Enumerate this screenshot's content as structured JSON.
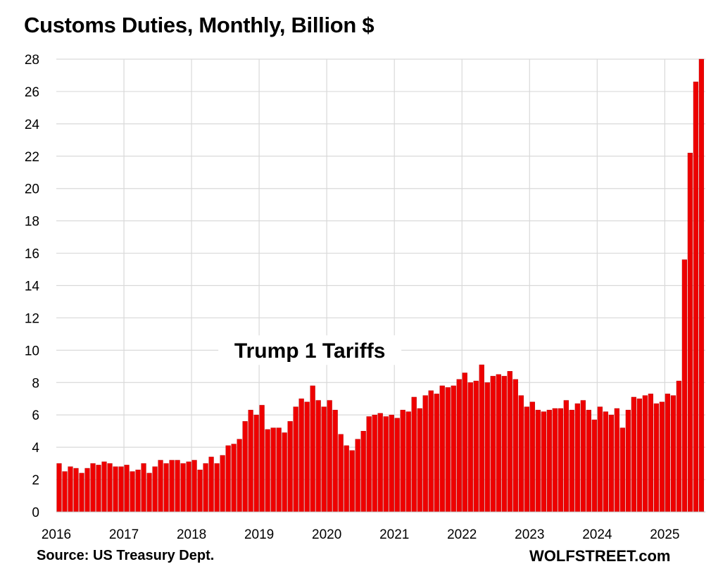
{
  "chart_data": {
    "type": "bar",
    "title": "Customs Duties, Monthly, Billion $",
    "xlabel": "",
    "ylabel": "",
    "ylim": [
      0,
      28
    ],
    "y_ticks": [
      "0",
      "2",
      "4",
      "6",
      "8",
      "10",
      "12",
      "14",
      "16",
      "18",
      "20",
      "22",
      "24",
      "26",
      "28"
    ],
    "x_ticks": [
      "2016",
      "2017",
      "2018",
      "2019",
      "2020",
      "2021",
      "2022",
      "2023",
      "2024",
      "2025"
    ],
    "start": "2016-01",
    "bar_color": "#ee0000",
    "values": [
      3.0,
      2.5,
      2.8,
      2.7,
      2.4,
      2.7,
      3.0,
      2.9,
      3.1,
      3.0,
      2.8,
      2.8,
      2.9,
      2.5,
      2.6,
      3.0,
      2.4,
      2.8,
      3.2,
      3.0,
      3.2,
      3.2,
      3.0,
      3.1,
      3.2,
      2.6,
      3.0,
      3.4,
      3.0,
      3.5,
      4.1,
      4.2,
      4.5,
      5.6,
      6.3,
      6.0,
      6.6,
      5.1,
      5.2,
      5.2,
      4.9,
      5.6,
      6.5,
      7.0,
      6.8,
      7.8,
      6.9,
      6.5,
      6.9,
      6.3,
      4.8,
      4.1,
      3.8,
      4.5,
      5.0,
      5.9,
      6.0,
      6.1,
      5.9,
      6.0,
      5.8,
      6.3,
      6.2,
      7.1,
      6.4,
      7.2,
      7.5,
      7.3,
      7.8,
      7.7,
      7.8,
      8.2,
      8.6,
      8.0,
      8.1,
      9.1,
      8.0,
      8.4,
      8.5,
      8.4,
      8.7,
      8.2,
      7.2,
      6.5,
      6.8,
      6.3,
      6.2,
      6.3,
      6.4,
      6.4,
      6.9,
      6.3,
      6.7,
      6.9,
      6.3,
      5.7,
      6.5,
      6.2,
      6.0,
      6.4,
      5.2,
      6.3,
      7.1,
      7.0,
      7.2,
      7.3,
      6.7,
      6.8,
      7.3,
      7.2,
      8.1,
      15.6,
      22.2,
      26.6,
      28.0
    ],
    "annotations": [
      {
        "text": "Trump 1 Tariffs",
        "x": "2019-10",
        "y": 9.7
      }
    ]
  },
  "footer": {
    "source": "Source: US Treasury Dept.",
    "credit": "WOLFSTREET.com"
  }
}
